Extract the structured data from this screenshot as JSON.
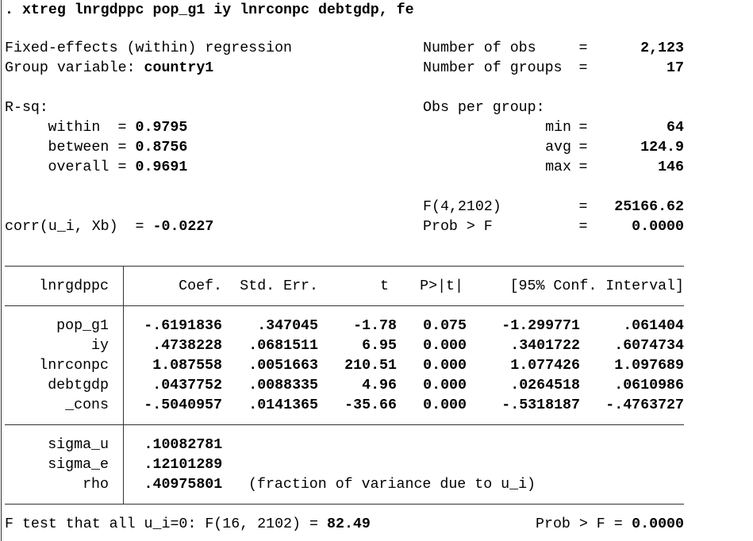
{
  "command": ". xtreg lnrgdppc pop_g1 iy lnrconpc debtgdp, fe",
  "equals": "=",
  "model": "Fixed-effects (within) regression",
  "group_variable": {
    "label": "Group variable:",
    "value": "country1"
  },
  "stats": [
    {
      "label": "Number of obs",
      "value": "2,123"
    },
    {
      "label": "Number of groups",
      "value": "17"
    }
  ],
  "r_sq": {
    "label": "R-sq:",
    "rows": [
      {
        "label": "within",
        "value": "0.9795"
      },
      {
        "label": "between",
        "value": "0.8756"
      },
      {
        "label": "overall",
        "value": "0.9691"
      }
    ]
  },
  "obs_per_group": {
    "label": "Obs per group:",
    "rows": [
      {
        "label": "min",
        "value": "64"
      },
      {
        "label": "avg",
        "value": "124.9"
      },
      {
        "label": "max",
        "value": "146"
      }
    ]
  },
  "f_stat": {
    "label": "F(4,2102)",
    "value": "25166.62"
  },
  "prob_f": {
    "label": "Prob > F",
    "value": "0.0000"
  },
  "corr": {
    "label": "corr(u_i, Xb)",
    "value": "-0.0227"
  },
  "table": {
    "columns": [
      "lnrgdppc",
      "Coef.",
      "Std. Err.",
      "t",
      "P>|t|",
      "[95% Conf. Interval]"
    ],
    "rows": [
      [
        "pop_g1",
        "-.6191836",
        ".347045",
        "-1.78",
        "0.075",
        "-1.299771",
        ".061404"
      ],
      [
        "iy",
        ".4738228",
        ".0681511",
        "6.95",
        "0.000",
        ".3401722",
        ".6074734"
      ],
      [
        "lnrconpc",
        "1.087558",
        ".0051663",
        "210.51",
        "0.000",
        "1.077426",
        "1.097689"
      ],
      [
        "debtgdp",
        ".0437752",
        ".0088335",
        "4.96",
        "0.000",
        ".0264518",
        ".0610986"
      ],
      [
        "_cons",
        "-.5040957",
        ".0141365",
        "-35.66",
        "0.000",
        "-.5318187",
        "-.4763727"
      ]
    ]
  },
  "variance": [
    {
      "label": "sigma_u",
      "value": ".10082781"
    },
    {
      "label": "sigma_e",
      "value": ".12101289"
    },
    {
      "label": "rho",
      "value": ".40975801",
      "note": "(fraction of variance due to u_i)"
    }
  ],
  "footer": {
    "test": "F test that all u_i=0: F(16, 2102) =",
    "value": "82.49",
    "prob_label": "Prob > F =",
    "prob_value": "0.0000"
  }
}
